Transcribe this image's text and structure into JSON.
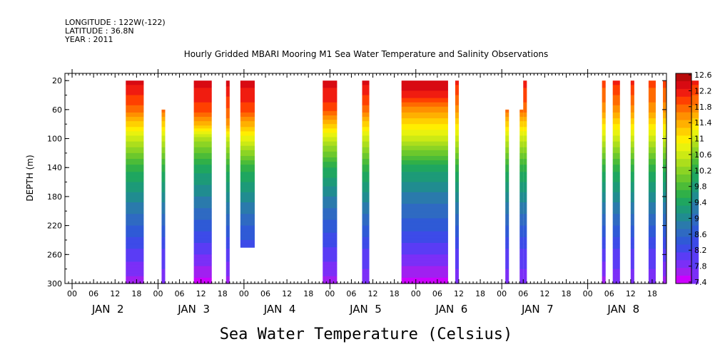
{
  "header": {
    "longitude": "LONGITUDE : 122W(-122)",
    "latitude": "LATITUDE : 36.8N",
    "year": "YEAR : 2011"
  },
  "chart_data": {
    "type": "heatmap",
    "title": "Hourly Gridded MBARI Mooring M1 Sea Water Temperature and Salinity Observations",
    "xlabel": "Sea Water Temperature (Celsius)",
    "ylabel": "DEPTH (m)",
    "x_unit": "hours since JAN 2 00:00 (2011)",
    "xlim": [
      -2,
      166
    ],
    "ylim": [
      300,
      10
    ],
    "y_ticks": [
      20,
      60,
      100,
      140,
      180,
      220,
      260,
      300
    ],
    "x_hour_labels": [
      "00",
      "06",
      "12",
      "18",
      "00",
      "06",
      "12",
      "18",
      "00",
      "06",
      "12",
      "18",
      "00",
      "06",
      "12",
      "18",
      "00",
      "06",
      "12",
      "18",
      "00",
      "06",
      "12",
      "18",
      "00",
      "06",
      "12",
      "18"
    ],
    "x_day_labels": [
      "JAN  2",
      "JAN  3",
      "JAN  4",
      "JAN  5",
      "JAN  6",
      "JAN  7",
      "JAN  8"
    ],
    "colorbar_ticks": [
      "12.6",
      "12.2",
      "11.8",
      "11.4",
      "11",
      "10.6",
      "10.2",
      "9.8",
      "9.4",
      "9",
      "8.6",
      "8.2",
      "7.8",
      "7.4"
    ],
    "color_levels": [
      7.4,
      7.6,
      7.8,
      8.0,
      8.2,
      8.4,
      8.6,
      8.8,
      9.0,
      9.2,
      9.4,
      9.6,
      9.8,
      10.0,
      10.2,
      10.4,
      10.6,
      10.8,
      11.0,
      11.2,
      11.4,
      11.6,
      11.8,
      12.0,
      12.2,
      12.4,
      12.6
    ],
    "colors": [
      "#cc00ff",
      "#a020f0",
      "#7b2ff7",
      "#5a3cf5",
      "#3d4be8",
      "#2f5ad6",
      "#2f6ac2",
      "#2a7aac",
      "#208c90",
      "#1d9a78",
      "#1fa660",
      "#30b048",
      "#4cbc38",
      "#6cc82c",
      "#8cd424",
      "#acde1c",
      "#ccea14",
      "#e8f20e",
      "#ffee00",
      "#ffd000",
      "#ffb000",
      "#ff9000",
      "#ff6a00",
      "#ff4000",
      "#f01c10",
      "#d80a12",
      "#b80a0a"
    ],
    "grid": false,
    "legend": "colorbar-right",
    "series": [
      {
        "start": 15,
        "end": 20,
        "top_depth": 20,
        "bottom_depth": 300,
        "profile": [
          [
            20,
            12.4
          ],
          [
            60,
            11.8
          ],
          [
            100,
            10.6
          ],
          [
            140,
            9.6
          ],
          [
            180,
            9.0
          ],
          [
            220,
            8.5
          ],
          [
            260,
            8.0
          ],
          [
            300,
            7.6
          ]
        ]
      },
      {
        "start": 25,
        "end": 26,
        "top_depth": 60,
        "bottom_depth": 300,
        "profile": [
          [
            60,
            11.8
          ],
          [
            100,
            10.6
          ],
          [
            140,
            9.6
          ],
          [
            180,
            9.0
          ],
          [
            220,
            8.5
          ],
          [
            260,
            8.0
          ],
          [
            300,
            7.8
          ]
        ]
      },
      {
        "start": 34,
        "end": 39,
        "top_depth": 20,
        "bottom_depth": 300,
        "profile": [
          [
            20,
            12.4
          ],
          [
            60,
            12.0
          ],
          [
            80,
            11.4
          ],
          [
            100,
            10.4
          ],
          [
            140,
            9.4
          ],
          [
            180,
            8.9
          ],
          [
            220,
            8.4
          ],
          [
            260,
            7.9
          ],
          [
            300,
            7.4
          ]
        ]
      },
      {
        "start": 43,
        "end": 44,
        "top_depth": 20,
        "bottom_depth": 300,
        "profile": [
          [
            20,
            12.4
          ],
          [
            80,
            11.6
          ],
          [
            100,
            10.6
          ],
          [
            140,
            9.6
          ],
          [
            180,
            9.0
          ],
          [
            220,
            8.5
          ],
          [
            260,
            8.0
          ],
          [
            300,
            7.6
          ]
        ]
      },
      {
        "start": 47,
        "end": 51,
        "top_depth": 20,
        "bottom_depth": 250,
        "profile": [
          [
            20,
            12.4
          ],
          [
            60,
            12.0
          ],
          [
            100,
            10.8
          ],
          [
            140,
            9.6
          ],
          [
            180,
            9.0
          ],
          [
            220,
            8.5
          ],
          [
            250,
            8.2
          ]
        ]
      },
      {
        "start": 70,
        "end": 74,
        "top_depth": 20,
        "bottom_depth": 300,
        "profile": [
          [
            20,
            12.4
          ],
          [
            60,
            12.0
          ],
          [
            100,
            10.6
          ],
          [
            140,
            9.5
          ],
          [
            180,
            8.9
          ],
          [
            220,
            8.4
          ],
          [
            260,
            8.0
          ],
          [
            300,
            7.6
          ]
        ]
      },
      {
        "start": 81,
        "end": 83,
        "top_depth": 20,
        "bottom_depth": 300,
        "profile": [
          [
            20,
            12.4
          ],
          [
            60,
            11.8
          ],
          [
            100,
            10.6
          ],
          [
            140,
            9.6
          ],
          [
            180,
            9.0
          ],
          [
            220,
            8.5
          ],
          [
            260,
            8.0
          ],
          [
            300,
            7.8
          ]
        ]
      },
      {
        "start": 92,
        "end": 105,
        "top_depth": 20,
        "bottom_depth": 300,
        "profile": [
          [
            20,
            12.5
          ],
          [
            40,
            12.2
          ],
          [
            60,
            11.6
          ],
          [
            100,
            10.6
          ],
          [
            140,
            9.4
          ],
          [
            180,
            8.8
          ],
          [
            220,
            8.4
          ],
          [
            260,
            7.9
          ],
          [
            300,
            7.4
          ]
        ]
      },
      {
        "start": 107,
        "end": 108,
        "top_depth": 20,
        "bottom_depth": 300,
        "profile": [
          [
            20,
            12.2
          ],
          [
            60,
            11.6
          ],
          [
            100,
            10.6
          ],
          [
            140,
            9.6
          ],
          [
            180,
            9.0
          ],
          [
            220,
            8.5
          ],
          [
            260,
            8.0
          ],
          [
            300,
            7.8
          ]
        ]
      },
      {
        "start": 121,
        "end": 122,
        "top_depth": 60,
        "bottom_depth": 300,
        "profile": [
          [
            60,
            11.8
          ],
          [
            100,
            10.6
          ],
          [
            140,
            9.6
          ],
          [
            180,
            9.0
          ],
          [
            220,
            8.5
          ],
          [
            260,
            8.0
          ],
          [
            300,
            7.8
          ]
        ]
      },
      {
        "start": 125,
        "end": 126,
        "top_depth": 60,
        "bottom_depth": 300,
        "profile": [
          [
            60,
            11.8
          ],
          [
            100,
            10.6
          ],
          [
            140,
            9.6
          ],
          [
            180,
            9.0
          ],
          [
            220,
            8.5
          ],
          [
            260,
            8.0
          ],
          [
            300,
            7.8
          ]
        ]
      },
      {
        "start": 126,
        "end": 127,
        "top_depth": 20,
        "bottom_depth": 300,
        "profile": [
          [
            20,
            12.2
          ],
          [
            60,
            11.8
          ],
          [
            100,
            10.6
          ],
          [
            140,
            9.6
          ],
          [
            180,
            9.0
          ],
          [
            220,
            8.5
          ],
          [
            260,
            8.0
          ],
          [
            300,
            7.8
          ]
        ]
      },
      {
        "start": 148,
        "end": 149,
        "top_depth": 20,
        "bottom_depth": 300,
        "profile": [
          [
            20,
            12.0
          ],
          [
            60,
            11.6
          ],
          [
            100,
            10.6
          ],
          [
            140,
            9.6
          ],
          [
            180,
            9.0
          ],
          [
            220,
            8.5
          ],
          [
            260,
            8.0
          ],
          [
            300,
            7.6
          ]
        ]
      },
      {
        "start": 151,
        "end": 153,
        "top_depth": 20,
        "bottom_depth": 300,
        "profile": [
          [
            20,
            12.2
          ],
          [
            60,
            11.6
          ],
          [
            100,
            10.6
          ],
          [
            140,
            9.6
          ],
          [
            180,
            9.0
          ],
          [
            220,
            8.5
          ],
          [
            260,
            8.0
          ],
          [
            300,
            7.8
          ]
        ]
      },
      {
        "start": 156,
        "end": 157,
        "top_depth": 20,
        "bottom_depth": 300,
        "profile": [
          [
            20,
            12.2
          ],
          [
            60,
            11.6
          ],
          [
            100,
            10.6
          ],
          [
            140,
            9.6
          ],
          [
            180,
            9.0
          ],
          [
            220,
            8.5
          ],
          [
            260,
            8.0
          ],
          [
            300,
            7.8
          ]
        ]
      },
      {
        "start": 161,
        "end": 163,
        "top_depth": 20,
        "bottom_depth": 300,
        "profile": [
          [
            20,
            12.0
          ],
          [
            60,
            11.6
          ],
          [
            100,
            10.6
          ],
          [
            140,
            9.6
          ],
          [
            180,
            9.0
          ],
          [
            220,
            8.5
          ],
          [
            260,
            8.0
          ],
          [
            300,
            7.8
          ]
        ]
      },
      {
        "start": 165,
        "end": 166,
        "top_depth": 20,
        "bottom_depth": 300,
        "profile": [
          [
            20,
            12.0
          ],
          [
            60,
            11.6
          ],
          [
            100,
            10.6
          ],
          [
            140,
            9.6
          ],
          [
            180,
            9.0
          ],
          [
            220,
            8.5
          ],
          [
            260,
            8.0
          ],
          [
            300,
            7.6
          ]
        ]
      },
      {
        "start": 169,
        "end": 170,
        "top_depth": 20,
        "bottom_depth": 300,
        "profile": [
          [
            20,
            12.0
          ],
          [
            60,
            11.6
          ],
          [
            100,
            10.6
          ],
          [
            140,
            9.6
          ],
          [
            180,
            9.0
          ],
          [
            220,
            8.5
          ],
          [
            260,
            8.0
          ],
          [
            300,
            7.8
          ]
        ]
      },
      {
        "start": 173,
        "end": 175,
        "top_depth": 20,
        "bottom_depth": 300,
        "profile": [
          [
            20,
            12.2
          ],
          [
            60,
            11.6
          ],
          [
            100,
            10.6
          ],
          [
            140,
            9.6
          ],
          [
            180,
            9.0
          ],
          [
            220,
            8.5
          ],
          [
            260,
            8.0
          ],
          [
            300,
            7.8
          ]
        ]
      }
    ]
  }
}
